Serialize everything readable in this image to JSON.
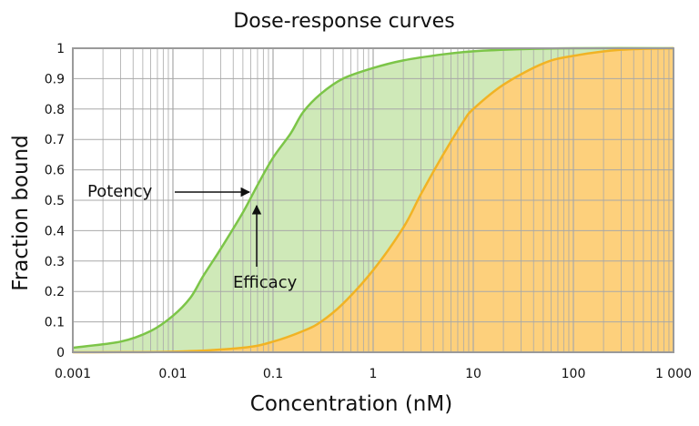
{
  "chart_data": {
    "type": "area",
    "title": "Dose-response curves",
    "xlabel": "Concentration (nM)",
    "ylabel": "Fraction bound",
    "xscale": "log",
    "xlim": [
      0.001,
      1000
    ],
    "ylim": [
      0,
      1
    ],
    "x_ticks": [
      0.001,
      0.01,
      0.1,
      1,
      10,
      100,
      1000
    ],
    "x_tick_labels": [
      "0.001",
      "0.01",
      "0.1",
      "1",
      "10",
      "100",
      "1 000"
    ],
    "y_ticks": [
      0,
      0.1,
      0.2,
      0.3,
      0.4,
      0.5,
      0.6,
      0.7,
      0.8,
      0.9,
      1
    ],
    "y_tick_labels": [
      "0",
      "0.1",
      "0.2",
      "0.3",
      "0.4",
      "0.5",
      "0.6",
      "0.7",
      "0.8",
      "0.9",
      "1"
    ],
    "grid": true,
    "series": [
      {
        "color_line": "#7cc548",
        "color_fill": "#cfe9b8",
        "points": [
          [
            0.001,
            0.015
          ],
          [
            0.003,
            0.035
          ],
          [
            0.006,
            0.07
          ],
          [
            0.01,
            0.12
          ],
          [
            0.015,
            0.18
          ],
          [
            0.02,
            0.25
          ],
          [
            0.03,
            0.34
          ],
          [
            0.05,
            0.46
          ],
          [
            0.07,
            0.55
          ],
          [
            0.1,
            0.64
          ],
          [
            0.15,
            0.72
          ],
          [
            0.2,
            0.79
          ],
          [
            0.3,
            0.85
          ],
          [
            0.5,
            0.9
          ],
          [
            1,
            0.935
          ],
          [
            2,
            0.96
          ],
          [
            5,
            0.98
          ],
          [
            10,
            0.99
          ],
          [
            30,
            0.997
          ],
          [
            100,
            1.0
          ],
          [
            1000,
            1.0
          ]
        ]
      },
      {
        "color_line": "#f1b324",
        "color_fill": "#fdd07c",
        "points": [
          [
            0.001,
            0.0
          ],
          [
            0.01,
            0.002
          ],
          [
            0.05,
            0.015
          ],
          [
            0.1,
            0.035
          ],
          [
            0.2,
            0.07
          ],
          [
            0.3,
            0.1
          ],
          [
            0.5,
            0.16
          ],
          [
            1,
            0.27
          ],
          [
            2,
            0.41
          ],
          [
            3,
            0.52
          ],
          [
            5,
            0.65
          ],
          [
            8,
            0.76
          ],
          [
            10,
            0.8
          ],
          [
            20,
            0.88
          ],
          [
            50,
            0.95
          ],
          [
            100,
            0.975
          ],
          [
            300,
            0.995
          ],
          [
            1000,
            1.0
          ]
        ]
      }
    ],
    "annotations": [
      {
        "text": "Potency",
        "x": 0.06,
        "y": 0.53
      },
      {
        "text": "Efficacy",
        "x": 0.06,
        "y": 0.47
      }
    ]
  }
}
